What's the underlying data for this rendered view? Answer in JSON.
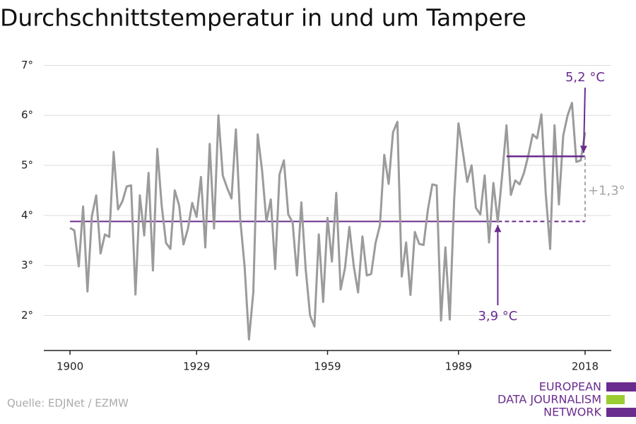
{
  "chart_data": {
    "type": "line",
    "title": "Durchschnittstemperatur in und um Tampere",
    "source": "Quelle: EDJNet / EZMW",
    "logo": [
      "EUROPEAN",
      "DATA JOURNALISM",
      "NETWORK"
    ],
    "x": [
      1900,
      1901,
      1902,
      1903,
      1904,
      1905,
      1906,
      1907,
      1908,
      1909,
      1910,
      1911,
      1912,
      1913,
      1914,
      1915,
      1916,
      1917,
      1918,
      1919,
      1920,
      1921,
      1922,
      1923,
      1924,
      1925,
      1926,
      1927,
      1928,
      1929,
      1930,
      1931,
      1932,
      1933,
      1934,
      1935,
      1936,
      1937,
      1938,
      1939,
      1940,
      1941,
      1942,
      1943,
      1944,
      1945,
      1946,
      1947,
      1948,
      1949,
      1950,
      1951,
      1952,
      1953,
      1954,
      1955,
      1956,
      1957,
      1958,
      1959,
      1960,
      1961,
      1962,
      1963,
      1964,
      1965,
      1966,
      1967,
      1968,
      1969,
      1970,
      1971,
      1972,
      1973,
      1974,
      1975,
      1976,
      1977,
      1978,
      1979,
      1980,
      1981,
      1982,
      1983,
      1984,
      1985,
      1986,
      1987,
      1988,
      1989,
      1990,
      1991,
      1992,
      1993,
      1994,
      1995,
      1996,
      1997,
      1998,
      1999,
      2000,
      2001,
      2002,
      2003,
      2004,
      2005,
      2006,
      2007,
      2008,
      2009,
      2010,
      2011,
      2012,
      2013,
      2014,
      2015,
      2016,
      2017,
      2018
    ],
    "series": [
      {
        "color": "#9b9b9b",
        "values": [
          3.75,
          3.7,
          2.98,
          4.18,
          2.48,
          3.98,
          4.4,
          3.24,
          3.62,
          3.57,
          5.27,
          4.12,
          4.28,
          4.58,
          4.6,
          2.42,
          4.4,
          3.6,
          4.85,
          2.9,
          5.33,
          4.2,
          3.45,
          3.33,
          4.5,
          4.2,
          3.42,
          3.73,
          4.25,
          3.97,
          4.77,
          3.36,
          5.43,
          3.74,
          6.0,
          4.8,
          4.55,
          4.34,
          5.72,
          3.92,
          2.98,
          1.52,
          2.47,
          5.62,
          4.9,
          3.88,
          4.32,
          2.93,
          4.82,
          5.1,
          4.02,
          3.86,
          2.8,
          4.26,
          2.92,
          2.0,
          1.78,
          3.62,
          2.27,
          3.95,
          3.08,
          4.45,
          2.52,
          2.95,
          3.77,
          2.99,
          2.46,
          3.58,
          2.8,
          2.83,
          3.45,
          3.8,
          5.21,
          4.63,
          5.66,
          5.87,
          2.78,
          3.46,
          2.41,
          3.67,
          3.43,
          3.41,
          4.12,
          4.62,
          4.6,
          1.9,
          3.36,
          1.92,
          4.3,
          5.84,
          5.27,
          4.67,
          5.0,
          4.15,
          4.02,
          4.8,
          3.46,
          4.65,
          3.87,
          4.8,
          5.8,
          4.41,
          4.7,
          4.62,
          4.85,
          5.2,
          5.62,
          5.54,
          6.02,
          4.42,
          3.33,
          5.8,
          4.22,
          5.6,
          6.0,
          6.25,
          5.07,
          5.1,
          5.66
        ]
      }
    ],
    "xlim": [
      1894,
      2024
    ],
    "xticks": [
      1900,
      1929,
      1959,
      1989,
      2018
    ],
    "ylim": [
      1.3,
      7.3
    ],
    "yticks": [
      {
        "value": 2,
        "label": "2°"
      },
      {
        "value": 3,
        "label": "3°"
      },
      {
        "value": 4,
        "label": "4°"
      },
      {
        "value": 5,
        "label": "5°"
      },
      {
        "value": 6,
        "label": "6°"
      },
      {
        "value": 7,
        "label": "7°"
      }
    ],
    "grid": true,
    "reference_lines": [
      {
        "value": 3.88,
        "label": "3,9 °C",
        "color": "#6a2c8e",
        "start": 1900,
        "end": 2018,
        "dashed_from": 1998
      },
      {
        "value": 5.18,
        "label": "5,2 °C",
        "color": "#6a2c8e",
        "start": 2000,
        "end": 2018
      }
    ],
    "difference_label": "+1,3°",
    "difference_color": "#a6a6a6"
  }
}
